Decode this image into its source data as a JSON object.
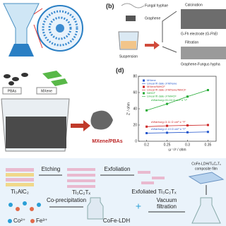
{
  "panel_b": {
    "label": "(b)",
    "fungal_hyphae": "Fungal hyphae",
    "graphene": "Graphene",
    "calcination": "Calcination",
    "electrode": "G-Fh electrode (G-FhEl",
    "filtration": "Filtration",
    "suspension": "Suspension",
    "hybrid": "Graphene-Fungus hypha"
  },
  "panel_c": {
    "pbas": "PBAs",
    "mxene": "MXene",
    "composite": "MXene/PBAs"
  },
  "panel_e": {
    "ti3alc2": "Ti₃AlC₂",
    "etching": "Etching",
    "ti3c2tx": "Ti₃C₂Tₓ",
    "exfoliation": "Exfoliation",
    "exfoliated": "Exfoliated Ti₃C₂Tₓ",
    "film_line1": "CoFe-LDH/Ti₃C₂Tₓ",
    "film_line2": "composite film",
    "co": "Co²⁺",
    "fe": "Fe³⁺",
    "coprecipitation": "Co-precipitation",
    "ldh": "CoFe-LDH",
    "vacuum": "Vacuum",
    "filtration": "filtration"
  },
  "chart_data": {
    "type": "line",
    "label": "(d)",
    "x_label": "ω⁻¹/² / ohm",
    "y_label": "Z' / ohm",
    "x": [
      0.2,
      0.25,
      0.3,
      0.35
    ],
    "series": [
      {
        "name": "MXene",
        "color": "#2255cc",
        "values": [
          10,
          10.5,
          11,
          11.5
        ]
      },
      {
        "name": "MXene/NiHCF",
        "color": "#cc2222",
        "values": [
          18,
          19,
          19.5,
          20
        ]
      },
      {
        "name": "NiHCF",
        "color": "#22aa33",
        "values": [
          38,
          46,
          55,
          63
        ]
      }
    ],
    "fit_names": [
      "Linear fit date of MXene",
      "Linear fit date of MXene/NiHCF",
      "Linear fit date of NiHCF"
    ],
    "annotations": [
      "σWarburg=31.04 Ω cm² s⁻¹/²",
      "σWarburg=3.11 Ω cm² s⁻¹/²",
      "σWarburg=2.13 Ω cm² s⁻¹/²"
    ],
    "xlim": [
      0.18,
      0.37
    ],
    "ylim": [
      0,
      80
    ],
    "xticks": [
      0.2,
      0.25,
      0.3,
      0.35
    ],
    "yticks": [
      0,
      20,
      40,
      60,
      80
    ]
  }
}
